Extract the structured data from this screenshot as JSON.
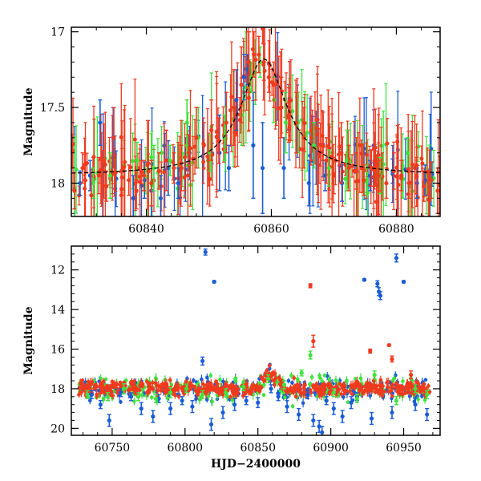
{
  "figure": {
    "xlabel": "HJD−2400000"
  },
  "chart_data": [
    {
      "type": "scatter",
      "panel": "top",
      "title": "",
      "xlabel": "",
      "ylabel": "Magnitude",
      "xlim": [
        60828,
        60887
      ],
      "ylim": [
        18.22,
        16.97
      ],
      "y_inverted": true,
      "xticks": [
        60840,
        60860,
        60880
      ],
      "xtick_labels": [
        "60840",
        "60860",
        "60880"
      ],
      "yticks": [
        17,
        17.5,
        18
      ],
      "ytick_labels": [
        "17",
        "17.5",
        "18"
      ],
      "series": [
        {
          "name": "blue",
          "color": "#1a5cd6",
          "x": [
            60829.4,
            60831.0,
            60832.6,
            60834.7,
            60837.9,
            60839.7,
            60840.8,
            60842.3,
            60843.5,
            60845.1,
            60851.7,
            60853.2,
            60854.4,
            60855.6,
            60856.2,
            60857.1,
            60858.6,
            60862.0,
            60866.0,
            60868.6,
            60871.3,
            60875.8,
            60879.4,
            60883.3,
            60884.6,
            60885.7
          ],
          "y": [
            18.0,
            17.95,
            17.6,
            17.7,
            18.1,
            17.98,
            18.05,
            18.1,
            17.9,
            18.0,
            17.8,
            17.9,
            17.45,
            17.3,
            17.25,
            17.75,
            17.9,
            17.9,
            18.0,
            17.95,
            18.0,
            17.95,
            17.92,
            18.0,
            17.98,
            17.94
          ],
          "err": [
            0.08,
            0.1,
            0.15,
            0.2,
            0.15,
            0.12,
            0.2,
            0.15,
            0.18,
            0.1,
            0.25,
            0.15,
            0.2,
            0.15,
            0.1,
            0.35,
            0.3,
            0.2,
            0.15,
            0.1,
            0.12,
            0.1,
            0.08,
            0.1,
            0.1,
            0.08
          ]
        },
        {
          "name": "green",
          "color": "#3ee33e",
          "x": [
            60831.5,
            60834.2,
            60838.5,
            60841.2,
            60843.8,
            60846.5,
            60848.3,
            60850.2,
            60852.5,
            60855.3,
            60856.8,
            60858.2,
            60860.4,
            60862.3,
            60864.3,
            60866.8,
            60869.2,
            60872.1,
            60875.2,
            60881.8,
            60877.4
          ],
          "y": [
            18.0,
            17.95,
            17.85,
            17.9,
            17.85,
            17.6,
            17.7,
            17.8,
            17.7,
            17.55,
            17.3,
            17.2,
            17.45,
            17.6,
            17.6,
            17.75,
            17.9,
            17.85,
            17.98,
            17.8,
            17.95
          ],
          "err": [
            0.1,
            0.15,
            0.12,
            0.15,
            0.1,
            0.15,
            0.2,
            0.12,
            0.15,
            0.2,
            0.1,
            0.1,
            0.15,
            0.2,
            0.2,
            0.15,
            0.12,
            0.2,
            0.1,
            0.1,
            0.12
          ]
        },
        {
          "name": "red",
          "color": "#f03a1e",
          "x": [
            60828.5,
            60829.8,
            60831.2,
            60832.4,
            60833.6,
            60834.8,
            60836.0,
            60837.2,
            60838.4,
            60839.6,
            60840.8,
            60842.0,
            60843.2,
            60844.4,
            60845.6,
            60846.8,
            60848.0,
            60849.2,
            60850.4,
            60851.6,
            60852.8,
            60854.0,
            60855.2,
            60856.4,
            60857.2,
            60858.0,
            60858.8,
            60859.6,
            60860.4,
            60861.6,
            60862.8,
            60864.0,
            60865.2,
            60866.4,
            60867.6,
            60868.8,
            60870.0,
            60871.2,
            60872.4,
            60873.6,
            60874.8,
            60876.0,
            60877.2,
            60878.4,
            60879.6,
            60880.8,
            60882.0,
            60883.2,
            60884.4,
            60885.6,
            60886.6
          ],
          "y": [
            18.05,
            17.9,
            18.08,
            17.95,
            18.02,
            17.7,
            18.08,
            17.98,
            18.05,
            17.95,
            18.0,
            17.92,
            17.85,
            17.9,
            17.9,
            17.8,
            17.7,
            17.75,
            17.65,
            17.72,
            17.6,
            17.5,
            17.35,
            17.2,
            17.15,
            17.15,
            17.2,
            17.3,
            17.35,
            17.5,
            17.55,
            17.6,
            17.7,
            17.7,
            17.82,
            17.85,
            17.95,
            17.8,
            17.9,
            17.92,
            17.98,
            17.9,
            17.95,
            18.0,
            17.92,
            17.95,
            18.0,
            17.95,
            18.02,
            17.98,
            18.05
          ],
          "err": [
            0.12,
            0.1,
            0.15,
            0.12,
            0.1,
            0.2,
            0.15,
            0.1,
            0.12,
            0.1,
            0.15,
            0.12,
            0.2,
            0.1,
            0.15,
            0.12,
            0.2,
            0.15,
            0.2,
            0.15,
            0.2,
            0.25,
            0.25,
            0.2,
            0.15,
            0.12,
            0.12,
            0.1,
            0.15,
            0.2,
            0.18,
            0.2,
            0.2,
            0.15,
            0.18,
            0.15,
            0.12,
            0.2,
            0.15,
            0.12,
            0.1,
            0.12,
            0.1,
            0.1,
            0.12,
            0.1,
            0.1,
            0.12,
            0.1,
            0.12,
            0.15
          ]
        }
      ],
      "model_curve": {
        "style": "dashed",
        "color": "#000000",
        "peak_x": 60858.8,
        "peak_y": 17.18,
        "baseline_y": 17.95,
        "width": 4.5
      }
    },
    {
      "type": "scatter",
      "panel": "bottom",
      "title": "",
      "xlabel": "HJD−2400000",
      "ylabel": "Magnitude",
      "xlim": [
        60722,
        60975
      ],
      "ylim": [
        20.35,
        10.8
      ],
      "y_inverted": true,
      "xticks": [
        60750,
        60800,
        60850,
        60900,
        60950
      ],
      "xtick_labels": [
        "60750",
        "60800",
        "60850",
        "60900",
        "60950"
      ],
      "yticks": [
        12,
        14,
        16,
        18,
        20
      ],
      "ytick_labels": [
        "12",
        "14",
        "16",
        "18",
        "20"
      ],
      "series": [
        {
          "name": "blue",
          "color": "#1a5cd6",
          "x": [
            60736,
            60742,
            60748,
            60756,
            60763,
            60770,
            60778,
            60782,
            60790,
            60798,
            60805,
            60812,
            60814,
            60818,
            60820,
            60826,
            60834,
            60842,
            60850,
            60859,
            60864,
            60870,
            60878,
            60884,
            60888,
            60892,
            60894,
            60897,
            60902,
            60908,
            60914,
            60918,
            60923,
            60928,
            60932,
            60933,
            60934,
            60942,
            60945,
            60950,
            60958,
            60966
          ],
          "y": [
            18.3,
            18.8,
            19.6,
            18.2,
            18.4,
            19.0,
            19.4,
            18.5,
            19.0,
            18.6,
            18.9,
            16.6,
            11.1,
            19.8,
            12.6,
            19.2,
            18.8,
            18.6,
            18.7,
            18.0,
            18.4,
            18.9,
            19.3,
            18.3,
            19.6,
            19.9,
            20.2,
            18.6,
            19.0,
            19.4,
            18.7,
            18.4,
            12.5,
            19.5,
            12.7,
            13.1,
            13.3,
            19.2,
            11.4,
            12.6,
            18.8,
            19.3
          ],
          "err": [
            0.2,
            0.2,
            0.3,
            0.2,
            0.2,
            0.3,
            0.3,
            0.2,
            0.3,
            0.2,
            0.3,
            0.2,
            0.15,
            0.3,
            0.05,
            0.3,
            0.3,
            0.2,
            0.25,
            0.2,
            0.2,
            0.3,
            0.3,
            0.2,
            0.3,
            0.3,
            0.3,
            0.2,
            0.3,
            0.3,
            0.3,
            0.2,
            0.05,
            0.3,
            0.15,
            0.2,
            0.2,
            0.3,
            0.2,
            0.05,
            0.3,
            0.3
          ]
        },
        {
          "name": "green",
          "color": "#3ee33e",
          "x": [
            60733,
            60747,
            60758,
            60768,
            60780,
            60790,
            60801,
            60812,
            60828,
            60840,
            60857,
            60868,
            60880,
            60886,
            60902,
            60918,
            60930,
            60945,
            60958,
            60966
          ],
          "y": [
            18.3,
            18.4,
            18.0,
            18.4,
            18.5,
            18.2,
            18.0,
            18.3,
            18.2,
            17.9,
            17.5,
            17.8,
            17.2,
            16.3,
            18.2,
            18.5,
            17.3,
            18.6,
            18.0,
            18.3
          ],
          "err": [
            0.2,
            0.2,
            0.25,
            0.2,
            0.2,
            0.25,
            0.2,
            0.2,
            0.2,
            0.2,
            0.2,
            0.2,
            0.15,
            0.2,
            0.2,
            0.2,
            0.2,
            0.2,
            0.2,
            0.2
          ]
        },
        {
          "name": "red",
          "color": "#f03a1e",
          "x": [
            60886,
            60888,
            60927,
            60940,
            60942,
            60955
          ],
          "y": [
            12.8,
            15.6,
            16.1,
            15.8,
            16.5,
            17.3
          ],
          "err": [
            0.1,
            0.3,
            0.1,
            0.05,
            0.15,
            0.2
          ]
        }
      ],
      "dense_band": {
        "x_range": [
          60727,
          60968
        ],
        "base_y": 18.0,
        "bump_peak_x": 60858,
        "bump_peak_y": 17.2,
        "colors": [
          "#f03a1e",
          "#1a5cd6",
          "#3ee33e"
        ]
      }
    }
  ]
}
